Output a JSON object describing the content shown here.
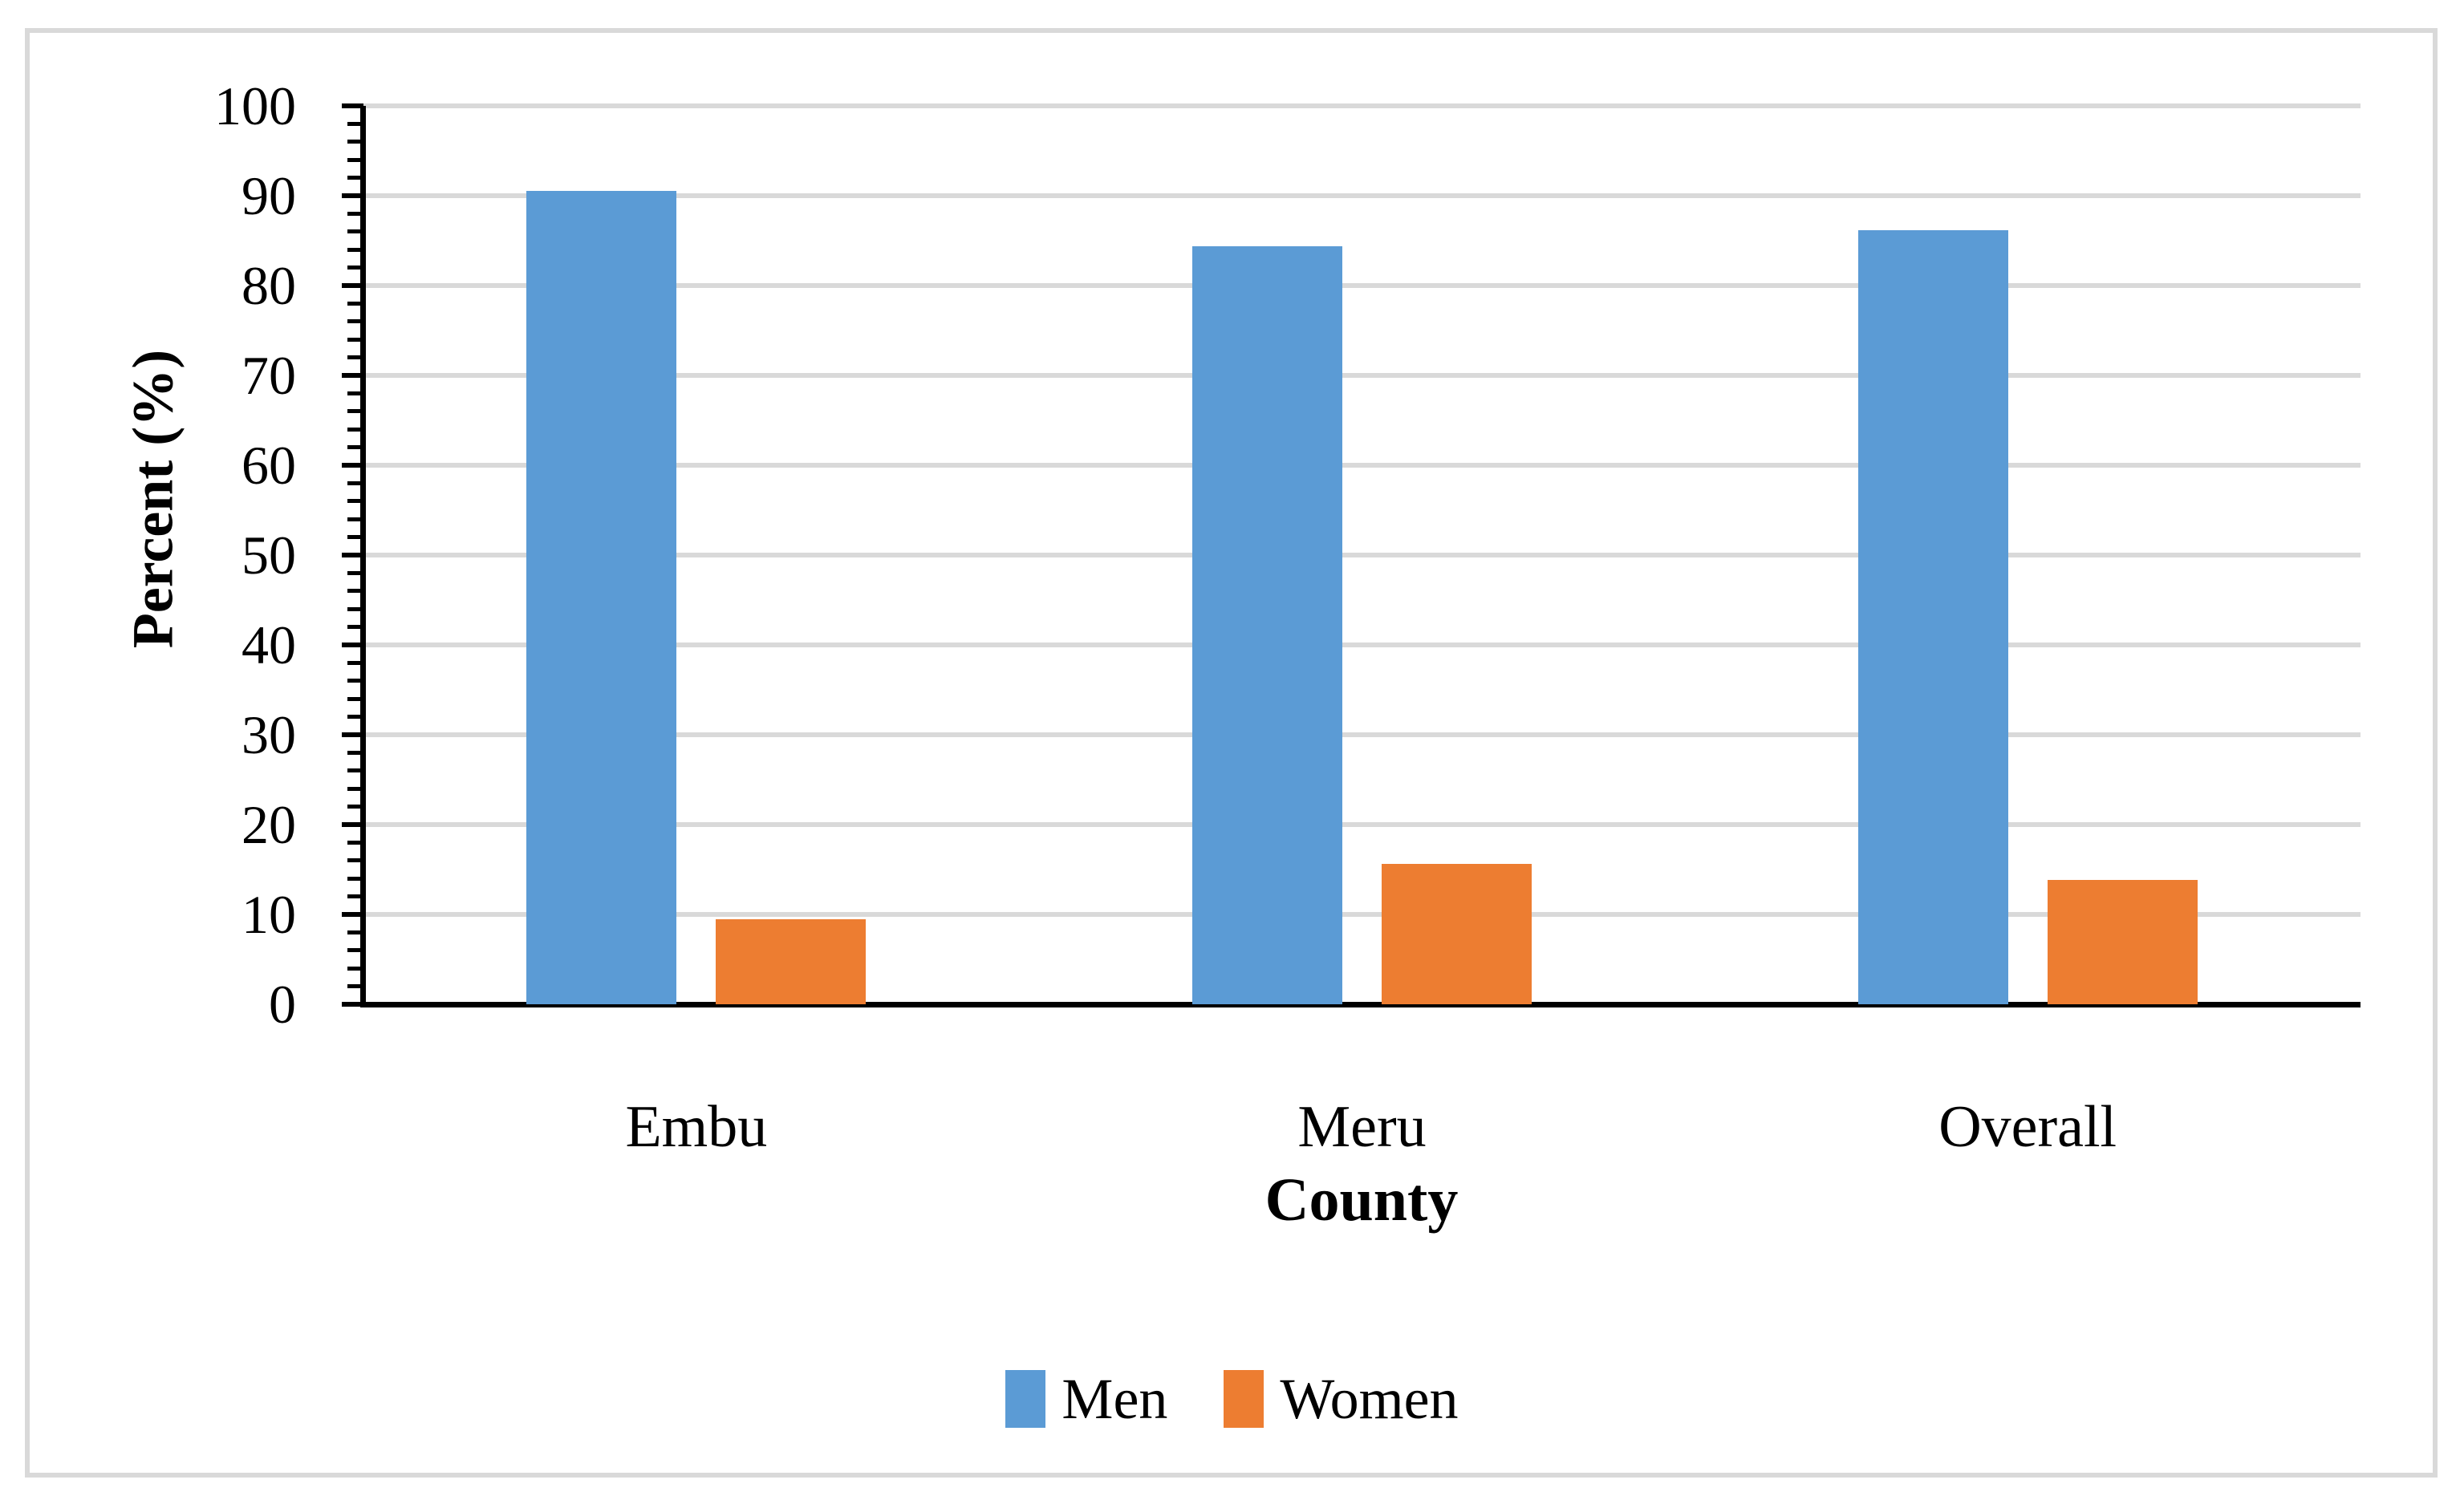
{
  "chart_data": {
    "type": "bar",
    "title": "",
    "categories": [
      "Embu",
      "Meru",
      "Overall"
    ],
    "series": [
      {
        "name": "Men",
        "color": "#5B9BD5",
        "values": [
          90.5,
          84.4,
          86.2
        ]
      },
      {
        "name": "Women",
        "color": "#ED7D31",
        "values": [
          9.5,
          15.6,
          13.8
        ]
      }
    ],
    "xlabel": "County",
    "ylabel": "Percent (%)",
    "ylim": [
      0,
      100
    ],
    "y_major_step": 10,
    "y_minor_step": 2,
    "y_tick_labels": [
      "0",
      "10",
      "20",
      "30",
      "40",
      "50",
      "60",
      "70",
      "80",
      "90",
      "100"
    ],
    "grid": "horizontal-major",
    "gridline_color": "#D9D9D9",
    "axis_color": "#000000",
    "border_color": "#D9D9D9",
    "legend_position": "bottom",
    "legend_entries": [
      "Men",
      "Women"
    ]
  }
}
